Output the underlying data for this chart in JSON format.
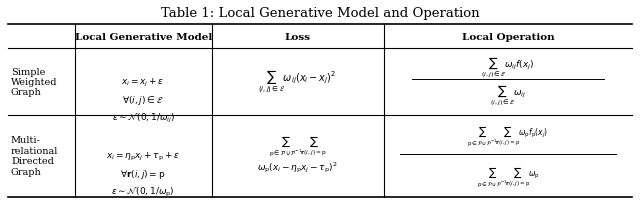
{
  "title": "Table 1: Local Generative Model and Operation",
  "col_headers": [
    "",
    "Local Generative Model",
    "Loss",
    "Local Operation"
  ],
  "row1_label": "Simple\nWeighted\nGraph",
  "row2_label": "Multi-\nrelational\nDirected\nGraph",
  "row1_model": "$x_i = x_j + \\epsilon$\n$\\forall(i,j) \\in \\mathcal{E}$\n$\\epsilon \\sim \\mathcal{N}(0, 1/\\omega_{ij})$",
  "row1_loss": "$\\displaystyle\\sum_{(i,j)\\in\\mathcal{E}} \\omega_{ij}(x_i - x_j)^2$",
  "row1_op_num": "$\\displaystyle\\sum_{(i,j)\\in\\mathcal{E}} \\omega_{ij} f(x_j)$",
  "row1_op_den": "$\\displaystyle\\sum_{(i,j)\\in\\mathcal{E}} \\omega_{ij}$",
  "row2_model": "$x_i = \\eta_{\\mathrm{p}} x_j + \\tau_{\\mathrm{p}} + \\epsilon$\n$\\forall\\mathbf{r}(i,j) = \\mathrm{p}$\n$\\epsilon \\sim \\mathcal{N}(0, 1/\\omega_{\\mathrm{p}})$",
  "row2_loss": "$\\displaystyle\\sum_{\\mathrm{p}\\in\\mathcal{P}\\cup\\mathcal{P}^{-1}}\\sum_{\\mathbf{r}(i,j)=\\mathrm{p}} \\omega_{\\mathrm{p}}(x_i - \\eta_{\\mathrm{p}} x_j - \\tau_{\\mathrm{p}})^2$",
  "row2_op_num": "$\\displaystyle\\sum_{\\mathrm{p}\\in\\mathcal{P}\\cup\\mathcal{P}^{-1}}\\sum_{\\mathbf{r}(i,j)=\\mathrm{p}} \\omega_{\\mathrm{p}} f_{\\mathrm{p}}(x_j)$",
  "row2_op_den": "$\\displaystyle\\sum_{\\mathrm{p}\\in\\mathcal{P}\\cup\\mathcal{P}^{-1}}\\sum_{\\mathbf{r}(i,j)=\\mathrm{p}} \\omega_{\\mathrm{p}}$",
  "bg_color": "#ffffff",
  "text_color": "#000000",
  "figsize": [
    6.4,
    2.03
  ],
  "dpi": 100
}
